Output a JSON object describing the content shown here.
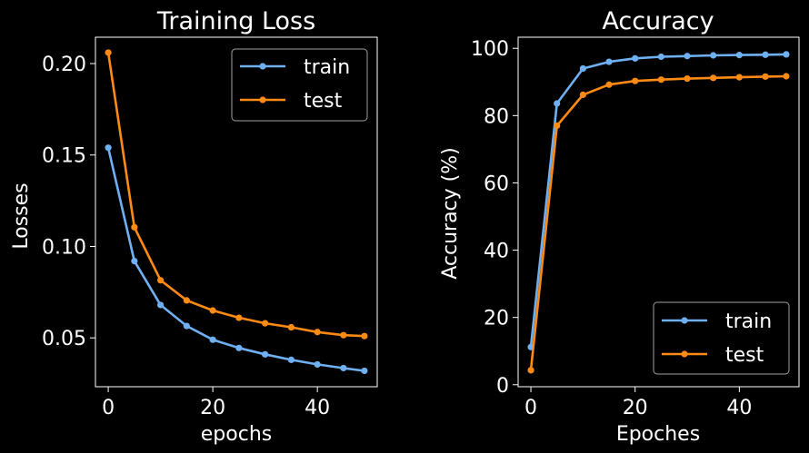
{
  "colors": {
    "background": "#000000",
    "foreground": "#ffffff",
    "train": "#6fb0f2",
    "test": "#ff8a14"
  },
  "chart_data": [
    {
      "type": "line",
      "title": "Training Loss",
      "xlabel": "epochs",
      "ylabel": "Losses",
      "xlim": [
        -2.45,
        51.45
      ],
      "ylim": [
        0.0233,
        0.2144
      ],
      "xticks": [
        0,
        20,
        40
      ],
      "xtick_labels": [
        "0",
        "20",
        "40"
      ],
      "yticks": [
        0.05,
        0.1,
        0.15,
        0.2
      ],
      "ytick_labels": [
        "0.05",
        "0.10",
        "0.15",
        "0.20"
      ],
      "legend_position": "upper right",
      "x": [
        0,
        5,
        10,
        15,
        20,
        25,
        30,
        35,
        40,
        45,
        49
      ],
      "series": [
        {
          "name": "train",
          "color": "#6fb0f2",
          "values": [
            0.154,
            0.092,
            0.068,
            0.0565,
            0.049,
            0.0445,
            0.041,
            0.038,
            0.0355,
            0.0335,
            0.032
          ]
        },
        {
          "name": "test",
          "color": "#ff8a14",
          "values": [
            0.206,
            0.1105,
            0.0815,
            0.0705,
            0.065,
            0.061,
            0.058,
            0.0558,
            0.0532,
            0.0515,
            0.051
          ]
        }
      ]
    },
    {
      "type": "line",
      "title": "Accuracy",
      "xlabel": "Epoches",
      "ylabel": "Accuracy (%)",
      "xlim": [
        -2.45,
        51.45
      ],
      "ylim": [
        -0.6,
        103.3
      ],
      "xticks": [
        0,
        20,
        40
      ],
      "xtick_labels": [
        "0",
        "20",
        "40"
      ],
      "yticks": [
        0,
        20,
        40,
        60,
        80,
        100
      ],
      "ytick_labels": [
        "0",
        "20",
        "40",
        "60",
        "80",
        "100"
      ],
      "legend_position": "lower right",
      "x": [
        0,
        5,
        10,
        15,
        20,
        25,
        30,
        35,
        40,
        45,
        49
      ],
      "series": [
        {
          "name": "train",
          "color": "#6fb0f2",
          "values": [
            11.2,
            83.6,
            94.0,
            96.0,
            97.0,
            97.5,
            97.7,
            97.9,
            98.0,
            98.1,
            98.2
          ]
        },
        {
          "name": "test",
          "color": "#ff8a14",
          "values": [
            4.3,
            77.0,
            86.2,
            89.2,
            90.3,
            90.7,
            91.0,
            91.2,
            91.4,
            91.6,
            91.7
          ]
        }
      ]
    }
  ]
}
